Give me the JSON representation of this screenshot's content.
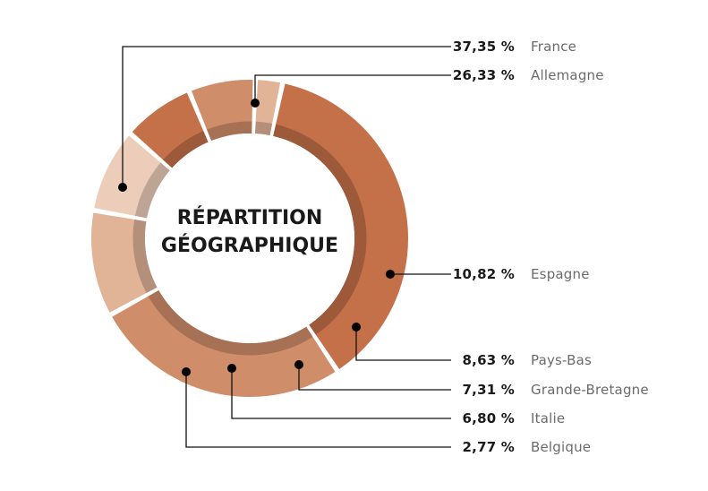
{
  "chart_data": {
    "type": "pie",
    "title_lines": [
      "RÉPARTITION",
      "GÉOGRAPHIQUE"
    ],
    "slices": [
      {
        "name": "France",
        "value": 37.35,
        "label": "37,35 %",
        "color": "#c4714a"
      },
      {
        "name": "Allemagne",
        "value": 26.33,
        "label": "26,33 %",
        "color": "#cf8d69"
      },
      {
        "name": "Espagne",
        "value": 10.82,
        "label": "10,82 %",
        "color": "#e1b397"
      },
      {
        "name": "Pays-Bas",
        "value": 8.63,
        "label": "8,63 %",
        "color": "#eccdba"
      },
      {
        "name": "Grande-Bretagne",
        "value": 7.31,
        "label": "7,31 %",
        "color": "#c4714a"
      },
      {
        "name": "Italie",
        "value": 6.8,
        "label": "6,80 %",
        "color": "#cf8d69"
      },
      {
        "name": "Belgique",
        "value": 2.77,
        "label": "2,77 %",
        "color": "#e1b397"
      }
    ]
  }
}
